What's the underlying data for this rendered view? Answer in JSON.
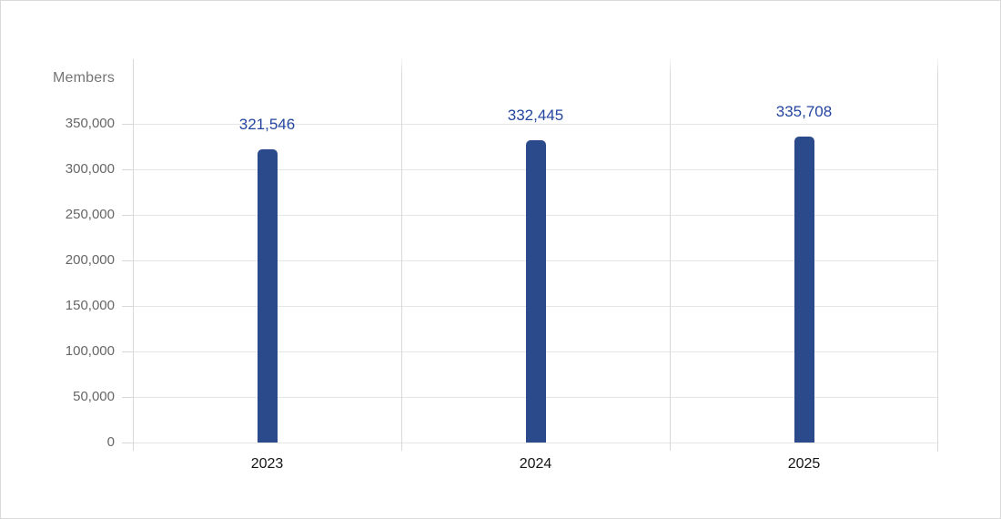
{
  "chart_data": {
    "type": "bar",
    "title": "",
    "unit_label": "Members",
    "categories": [
      "2023",
      "2024",
      "2025"
    ],
    "values": [
      321546,
      332445,
      335708
    ],
    "value_labels": [
      "321,546",
      "332,445",
      "335,708"
    ],
    "series": [
      {
        "name": "Members",
        "values": [
          321546,
          332445,
          335708
        ]
      }
    ],
    "y_ticks": [
      0,
      50000,
      100000,
      150000,
      200000,
      250000,
      300000,
      350000
    ],
    "y_tick_labels": [
      "0",
      "50,000",
      "100,000",
      "150,000",
      "200,000",
      "250,000",
      "300,000",
      "350,000"
    ],
    "ylim": [
      0,
      350000
    ],
    "xlabel": "",
    "ylabel": "Members",
    "grid": true,
    "legend": "none",
    "colors": {
      "bar": "#2b4a8c",
      "value_label": "#24459f",
      "axis_label": "#666666",
      "category_label": "#151515",
      "gridline": "#e6e6e6",
      "axis_line": "#d8d8d8",
      "canvas_border": "#d9d9d9",
      "background": "#ffffff"
    }
  }
}
